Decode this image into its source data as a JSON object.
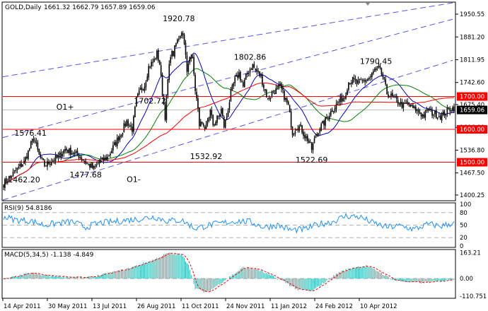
{
  "header": {
    "title": "GOLD,Daily",
    "ohlc": "1661.32 1662.79 1657.89 1659.06"
  },
  "colors": {
    "candle": "#000000",
    "ma_fast": "#0000cc",
    "ma_mid": "#008000",
    "ma_slow": "#ff0000",
    "channel": "#5555ee",
    "hline": "#ff0000",
    "rsi": "#1e90ff",
    "macd_hist": "#20b2aa",
    "macd_signal": "#ff0000",
    "price_tag_bg": "#ff0000",
    "current_tag_bg": "#000000"
  },
  "chart_data": {
    "type": "candlestick",
    "symbol": "GOLD",
    "timeframe": "Daily",
    "price_axis": {
      "ticks": [
        "1950.55",
        "1881.20",
        "1811.95",
        "1742.60",
        "1675.40",
        "1606.00",
        "1536.80",
        "1467.50",
        "1400.25"
      ],
      "range": [
        1385,
        1985
      ]
    },
    "x_labels": [
      "14 Apr 2011",
      "30 May 2011",
      "13 Jul 2011",
      "26 Aug 2011",
      "11 Oct 2011",
      "24 Nov 2011",
      "11 Jan 2012",
      "24 Feb 2012",
      "10 Apr 2012"
    ],
    "close_path": [
      [
        0,
        1435
      ],
      [
        8,
        1470
      ],
      [
        15,
        1500
      ],
      [
        22,
        1575
      ],
      [
        26,
        1520
      ],
      [
        30,
        1490
      ],
      [
        35,
        1505
      ],
      [
        40,
        1515
      ],
      [
        45,
        1540
      ],
      [
        50,
        1530
      ],
      [
        55,
        1520
      ],
      [
        60,
        1500
      ],
      [
        66,
        1480
      ],
      [
        70,
        1500
      ],
      [
        76,
        1515
      ],
      [
        82,
        1560
      ],
      [
        86,
        1590
      ],
      [
        90,
        1625
      ],
      [
        94,
        1600
      ],
      [
        97,
        1690
      ],
      [
        100,
        1720
      ],
      [
        103,
        1735
      ],
      [
        106,
        1790
      ],
      [
        110,
        1810
      ],
      [
        112,
        1830
      ],
      [
        114,
        1800
      ],
      [
        116,
        1710
      ],
      [
        118,
        1640
      ],
      [
        120,
        1750
      ],
      [
        122,
        1830
      ],
      [
        124,
        1830
      ],
      [
        126,
        1860
      ],
      [
        128,
        1880
      ],
      [
        130,
        1900
      ],
      [
        132,
        1870
      ],
      [
        134,
        1770
      ],
      [
        136,
        1820
      ],
      [
        138,
        1830
      ],
      [
        139,
        1760
      ],
      [
        141,
        1690
      ],
      [
        143,
        1620
      ],
      [
        145,
        1610
      ],
      [
        147,
        1590
      ],
      [
        149,
        1630
      ],
      [
        151,
        1655
      ],
      [
        153,
        1615
      ],
      [
        155,
        1625
      ],
      [
        157,
        1640
      ],
      [
        159,
        1660
      ],
      [
        161,
        1610
      ],
      [
        163,
        1640
      ],
      [
        166,
        1710
      ],
      [
        169,
        1750
      ],
      [
        172,
        1770
      ],
      [
        175,
        1730
      ],
      [
        177,
        1760
      ],
      [
        180,
        1785
      ],
      [
        182,
        1795
      ],
      [
        184,
        1780
      ],
      [
        186,
        1770
      ],
      [
        188,
        1760
      ],
      [
        190,
        1730
      ],
      [
        193,
        1690
      ],
      [
        196,
        1710
      ],
      [
        199,
        1720
      ],
      [
        202,
        1730
      ],
      [
        205,
        1700
      ],
      [
        208,
        1670
      ],
      [
        211,
        1590
      ],
      [
        214,
        1610
      ],
      [
        217,
        1605
      ],
      [
        220,
        1580
      ],
      [
        222,
        1570
      ],
      [
        225,
        1540
      ],
      [
        228,
        1580
      ],
      [
        231,
        1605
      ],
      [
        234,
        1620
      ],
      [
        237,
        1640
      ],
      [
        240,
        1660
      ],
      [
        242,
        1670
      ],
      [
        246,
        1690
      ],
      [
        249,
        1700
      ],
      [
        252,
        1745
      ],
      [
        255,
        1750
      ],
      [
        258,
        1740
      ],
      [
        262,
        1745
      ],
      [
        265,
        1750
      ],
      [
        268,
        1760
      ],
      [
        271,
        1780
      ],
      [
        274,
        1785
      ],
      [
        277,
        1760
      ],
      [
        280,
        1710
      ],
      [
        283,
        1700
      ],
      [
        286,
        1690
      ],
      [
        289,
        1680
      ],
      [
        292,
        1670
      ],
      [
        295,
        1680
      ],
      [
        298,
        1665
      ],
      [
        301,
        1660
      ],
      [
        304,
        1650
      ],
      [
        307,
        1640
      ],
      [
        310,
        1660
      ],
      [
        313,
        1650
      ],
      [
        316,
        1645
      ],
      [
        319,
        1640
      ],
      [
        322,
        1650
      ],
      [
        325,
        1660
      ],
      [
        328,
        1665
      ]
    ],
    "candles_count": 330,
    "moving_averages": [
      {
        "color": "blue",
        "role": "fast"
      },
      {
        "color": "green",
        "role": "medium"
      },
      {
        "color": "red",
        "role": "slow"
      }
    ],
    "levels": [
      {
        "label": "1700.00",
        "value": 1700
      },
      {
        "label": "1600.00",
        "value": 1600
      },
      {
        "label": "1500.00",
        "value": 1500
      }
    ],
    "current_price": {
      "label": "1659.06",
      "value": 1659.06
    },
    "annotations": [
      {
        "text": "1920.78",
        "x": 128,
        "price": 1920.78,
        "pos": "above"
      },
      {
        "text": "1702.72",
        "x": 107,
        "price": 1702.72,
        "pos": "below"
      },
      {
        "text": "1802.86",
        "x": 180,
        "price": 1802.86,
        "pos": "above"
      },
      {
        "text": "1790.45",
        "x": 272,
        "price": 1790.45,
        "pos": "above"
      },
      {
        "text": "1576.41",
        "x": 10,
        "price": 1576.41,
        "pos": "left"
      },
      {
        "text": "1462.20",
        "x": 15,
        "price": 1462.2,
        "pos": "below"
      },
      {
        "text": "1477.68",
        "x": 60,
        "price": 1477.68,
        "pos": "below"
      },
      {
        "text": "1532.92",
        "x": 148,
        "price": 1532.92,
        "pos": "below"
      },
      {
        "text": "1522.69",
        "x": 225,
        "price": 1522.69,
        "pos": "below"
      }
    ],
    "wave_labels": [
      {
        "text": "O1+",
        "x": 45,
        "price": 1660
      },
      {
        "text": "O1-",
        "x": 95,
        "price": 1440
      }
    ],
    "rsi": {
      "title": "RSI(9) 54.8186",
      "levels": [
        "80",
        "50",
        "20"
      ],
      "scale_top": "100",
      "scale_bottom": "0",
      "path": [
        [
          0,
          70
        ],
        [
          10,
          62
        ],
        [
          20,
          60
        ],
        [
          30,
          50
        ],
        [
          40,
          55
        ],
        [
          50,
          58
        ],
        [
          60,
          45
        ],
        [
          70,
          55
        ],
        [
          80,
          58
        ],
        [
          90,
          62
        ],
        [
          100,
          65
        ],
        [
          110,
          70
        ],
        [
          120,
          60
        ],
        [
          130,
          62
        ],
        [
          140,
          42
        ],
        [
          150,
          50
        ],
        [
          160,
          55
        ],
        [
          170,
          60
        ],
        [
          180,
          58
        ],
        [
          190,
          45
        ],
        [
          200,
          50
        ],
        [
          210,
          38
        ],
        [
          220,
          40
        ],
        [
          230,
          52
        ],
        [
          240,
          58
        ],
        [
          250,
          72
        ],
        [
          260,
          70
        ],
        [
          270,
          55
        ],
        [
          280,
          45
        ],
        [
          290,
          48
        ],
        [
          300,
          40
        ],
        [
          310,
          52
        ],
        [
          320,
          48
        ],
        [
          328,
          54.8
        ]
      ]
    },
    "macd": {
      "title": "MACD(5,34,5) -1.138 -4.849",
      "ticks": [
        "163.21",
        "0.00",
        "-110.751"
      ],
      "range": [
        -115,
        170
      ],
      "hist_path": [
        [
          0,
          -5
        ],
        [
          10,
          15
        ],
        [
          20,
          35
        ],
        [
          30,
          20
        ],
        [
          40,
          15
        ],
        [
          50,
          10
        ],
        [
          60,
          5
        ],
        [
          70,
          20
        ],
        [
          80,
          40
        ],
        [
          90,
          60
        ],
        [
          100,
          90
        ],
        [
          110,
          120
        ],
        [
          120,
          160
        ],
        [
          130,
          150
        ],
        [
          135,
          90
        ],
        [
          140,
          -60
        ],
        [
          148,
          -90
        ],
        [
          155,
          -50
        ],
        [
          165,
          10
        ],
        [
          175,
          70
        ],
        [
          185,
          60
        ],
        [
          195,
          20
        ],
        [
          205,
          -20
        ],
        [
          215,
          -70
        ],
        [
          225,
          -80
        ],
        [
          235,
          -20
        ],
        [
          245,
          40
        ],
        [
          255,
          70
        ],
        [
          265,
          80
        ],
        [
          275,
          40
        ],
        [
          285,
          -10
        ],
        [
          295,
          -20
        ],
        [
          305,
          -25
        ],
        [
          315,
          -20
        ],
        [
          325,
          -8
        ],
        [
          328,
          -1
        ]
      ]
    }
  }
}
